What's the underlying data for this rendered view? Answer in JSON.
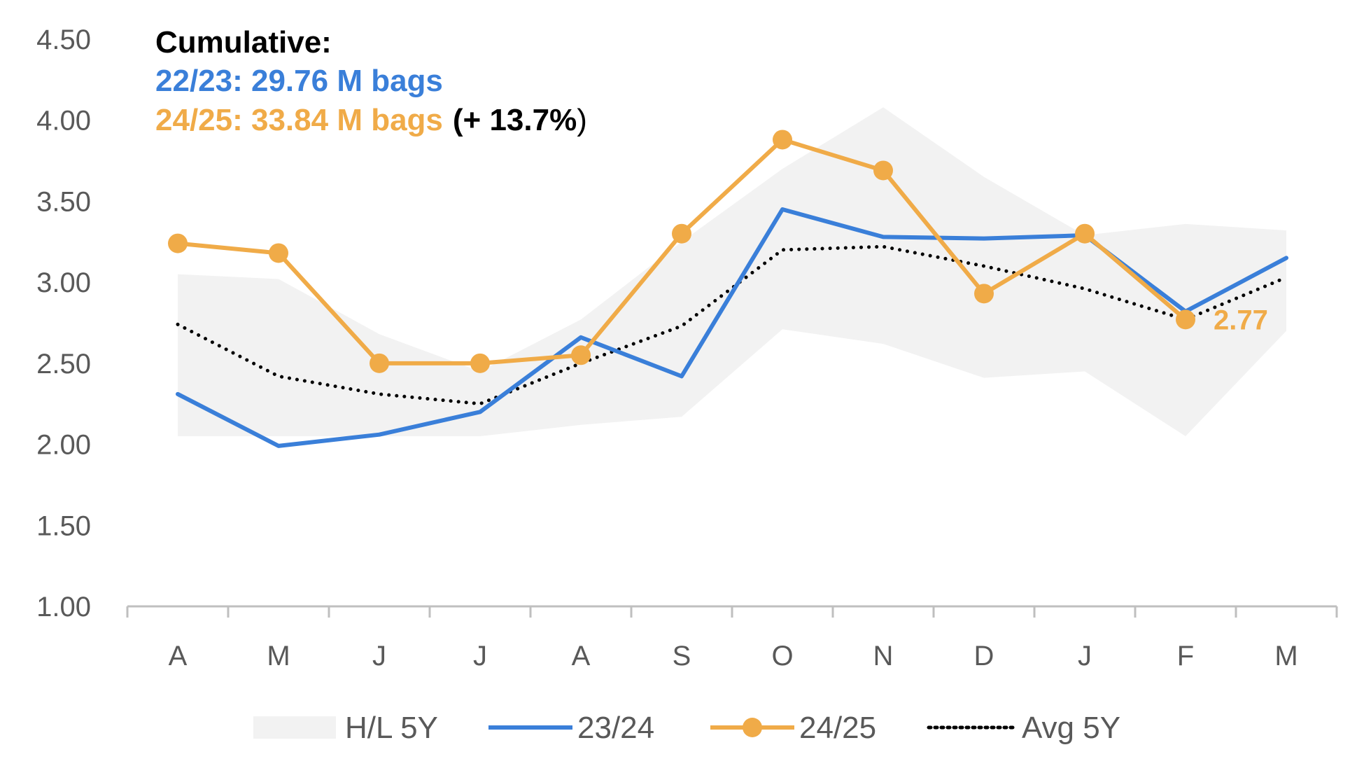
{
  "chart_data": {
    "type": "line",
    "categories": [
      "A",
      "M",
      "J",
      "J",
      "A",
      "S",
      "O",
      "N",
      "D",
      "J",
      "F",
      "M"
    ],
    "ylim": [
      1.0,
      4.5
    ],
    "yticks": [
      "1.00",
      "1.50",
      "2.00",
      "2.50",
      "3.00",
      "3.50",
      "4.00",
      "4.50"
    ],
    "grid": false,
    "legend_position": "bottom",
    "band": {
      "name": "H/L 5Y",
      "high": [
        3.05,
        3.02,
        2.68,
        2.45,
        2.77,
        3.25,
        3.7,
        4.08,
        3.65,
        3.29,
        3.36,
        3.32
      ],
      "low": [
        2.05,
        2.05,
        2.05,
        2.05,
        2.12,
        2.17,
        2.71,
        2.62,
        2.41,
        2.45,
        2.05,
        2.7
      ]
    },
    "series": [
      {
        "name": "23/24",
        "color": "#3a7fd9",
        "marker": false,
        "values": [
          2.31,
          1.99,
          2.06,
          2.2,
          2.66,
          2.42,
          3.45,
          3.28,
          3.27,
          3.29,
          2.82,
          3.15
        ]
      },
      {
        "name": "24/25",
        "color": "#f0ab48",
        "marker": true,
        "values": [
          3.24,
          3.18,
          2.5,
          2.5,
          2.55,
          3.3,
          3.88,
          3.69,
          2.93,
          3.3,
          2.77,
          null
        ]
      },
      {
        "name": "Avg 5Y",
        "color": "#000000",
        "dotted": true,
        "values": [
          2.74,
          2.42,
          2.31,
          2.25,
          2.5,
          2.73,
          3.2,
          3.22,
          3.1,
          2.96,
          2.77,
          3.03
        ]
      }
    ],
    "data_labels": [
      {
        "series": "24/25",
        "index": 10,
        "text": "2.77"
      }
    ]
  },
  "annotation": {
    "heading": "Cumulative:",
    "line1": "22/23: 29.76 M bags",
    "line2": "24/25: 33.84 M bags",
    "line2_suffix": "(+ 13.7%",
    "line2_close": ")"
  },
  "colors": {
    "band": "#f2f2f2",
    "blue": "#3a7fd9",
    "orange": "#f0ab48",
    "black": "#000000",
    "axis": "#bfbfbf"
  }
}
